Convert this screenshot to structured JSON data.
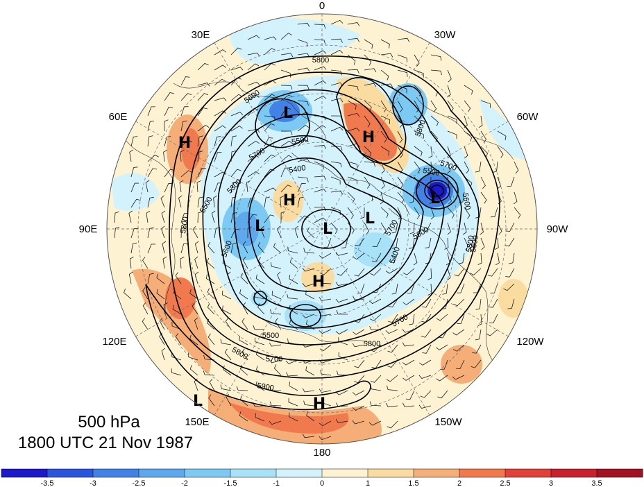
{
  "title": {
    "level": "500 hPa",
    "valid_time": "1800 UTC 21 Nov 1987"
  },
  "longitude_labels": {
    "lon_0": "0",
    "lon_30e": "30E",
    "lon_30w": "30W",
    "lon_60e": "60E",
    "lon_60w": "60W",
    "lon_90e": "90E",
    "lon_90w": "90W",
    "lon_120e": "120E",
    "lon_120w": "120W",
    "lon_150e": "150E",
    "lon_150w": "150W",
    "lon_180": "180"
  },
  "pressure_centers": [
    {
      "type": "L"
    },
    {
      "type": "H"
    },
    {
      "type": "H"
    },
    {
      "type": "L"
    },
    {
      "type": "H"
    },
    {
      "type": "L"
    },
    {
      "type": "L"
    },
    {
      "type": "L"
    },
    {
      "type": "H"
    },
    {
      "type": "H"
    },
    {
      "type": "L"
    }
  ],
  "contour_labels": [
    "5800",
    "5800",
    "5700",
    "5600",
    "5500",
    "5400",
    "5300",
    "5700",
    "5500",
    "5800",
    "5600",
    "5900",
    "5800",
    "5700",
    "5800",
    "5500",
    "5700",
    "5600",
    "5400",
    "5600",
    "5500",
    "5600",
    "5700",
    "5800"
  ],
  "colorbar": {
    "tick_labels": [
      "-3.5",
      "-3",
      "-2.5",
      "-2",
      "-1.5",
      "-1",
      "0",
      "1",
      "1.5",
      "2",
      "2.5",
      "3",
      "3.5"
    ],
    "colors": [
      "#1d18c8",
      "#2a55dc",
      "#4282e6",
      "#5ea8ee",
      "#7ccaf4",
      "#a8e2f8",
      "#d4f2fb",
      "#fdf3d2",
      "#fbdca0",
      "#f6ae78",
      "#f0794e",
      "#e2413a",
      "#c8202d",
      "#a21222"
    ]
  },
  "colors": {
    "contour": "#000000",
    "coast": "#2a2a2a",
    "map_edge": "#555555",
    "grid": "#666666"
  }
}
